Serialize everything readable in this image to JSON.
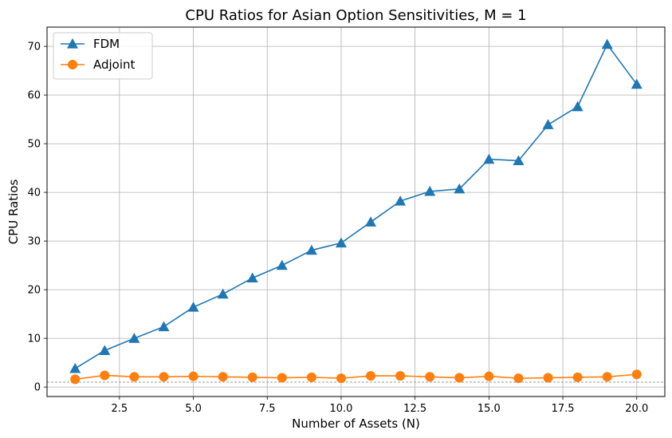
{
  "chart_data": {
    "type": "line",
    "title": "CPU Ratios for Asian Option Sensitivities, M = 1",
    "xlabel": "Number of Assets (N)",
    "ylabel": "CPU Ratios",
    "xlim": [
      0.05,
      20.95
    ],
    "ylim": [
      -1.95,
      73.95
    ],
    "xticks": [
      2.5,
      5.0,
      7.5,
      10.0,
      12.5,
      15.0,
      17.5,
      20.0
    ],
    "xtick_labels": [
      "2.5",
      "5.0",
      "7.5",
      "10.0",
      "12.5",
      "15.0",
      "17.5",
      "20.0"
    ],
    "yticks": [
      0,
      10,
      20,
      30,
      40,
      50,
      60,
      70
    ],
    "ytick_labels": [
      "0",
      "10",
      "20",
      "30",
      "40",
      "50",
      "60",
      "70"
    ],
    "grid": true,
    "legend_position": "top-left",
    "reference_line": {
      "y": 1,
      "style": "dashed",
      "color": "#999999"
    },
    "x": [
      1,
      2,
      3,
      4,
      5,
      6,
      7,
      8,
      9,
      10,
      11,
      12,
      13,
      14,
      15,
      16,
      17,
      18,
      19,
      20
    ],
    "series": [
      {
        "name": "FDM",
        "color": "#1f77b4",
        "marker": "triangle-icon",
        "values": [
          3.8,
          7.5,
          10.0,
          12.4,
          16.4,
          19.1,
          22.4,
          25.0,
          28.1,
          29.6,
          33.9,
          38.2,
          40.2,
          40.7,
          46.8,
          46.5,
          53.9,
          57.6,
          70.4,
          62.2
        ]
      },
      {
        "name": "Adjoint",
        "color": "#ff7f0e",
        "marker": "circle-icon",
        "values": [
          1.6,
          2.4,
          2.1,
          2.1,
          2.2,
          2.1,
          2.0,
          1.9,
          2.0,
          1.8,
          2.3,
          2.3,
          2.1,
          1.9,
          2.2,
          1.8,
          1.9,
          2.0,
          2.1,
          2.6
        ]
      }
    ]
  }
}
